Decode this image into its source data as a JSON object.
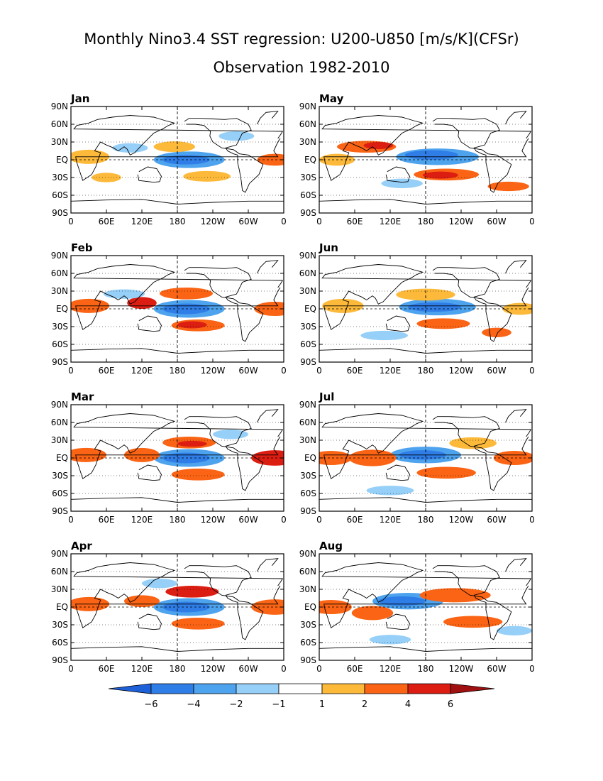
{
  "title_line1": "Monthly Nino3.4 SST regression: U200-U850 [m/s/K](CFSr)",
  "title_line2": "Observation 1982-2010",
  "lon_ticks": [
    "0",
    "60E",
    "120E",
    "180",
    "120W",
    "60W",
    "0"
  ],
  "lat_ticks": [
    "90N",
    "60N",
    "30N",
    "EQ",
    "30S",
    "60S",
    "90S"
  ],
  "colorbar": {
    "labels": [
      "-6",
      "-4",
      "-2",
      "-1",
      "1",
      "2",
      "4",
      "6"
    ],
    "colors": [
      "#1e60d8",
      "#2f7ee8",
      "#4ea3ee",
      "#96d0f8",
      "#ffffff",
      "#fcb93a",
      "#fa6414",
      "#dc1e12",
      "#a01010"
    ]
  },
  "panels": [
    {
      "id": "jan",
      "label": "Jan"
    },
    {
      "id": "may",
      "label": "May"
    },
    {
      "id": "feb",
      "label": "Feb"
    },
    {
      "id": "jun",
      "label": "Jun"
    },
    {
      "id": "mar",
      "label": "Mar"
    },
    {
      "id": "jul",
      "label": "Jul"
    },
    {
      "id": "apr",
      "label": "Apr"
    },
    {
      "id": "aug",
      "label": "Aug"
    }
  ]
}
